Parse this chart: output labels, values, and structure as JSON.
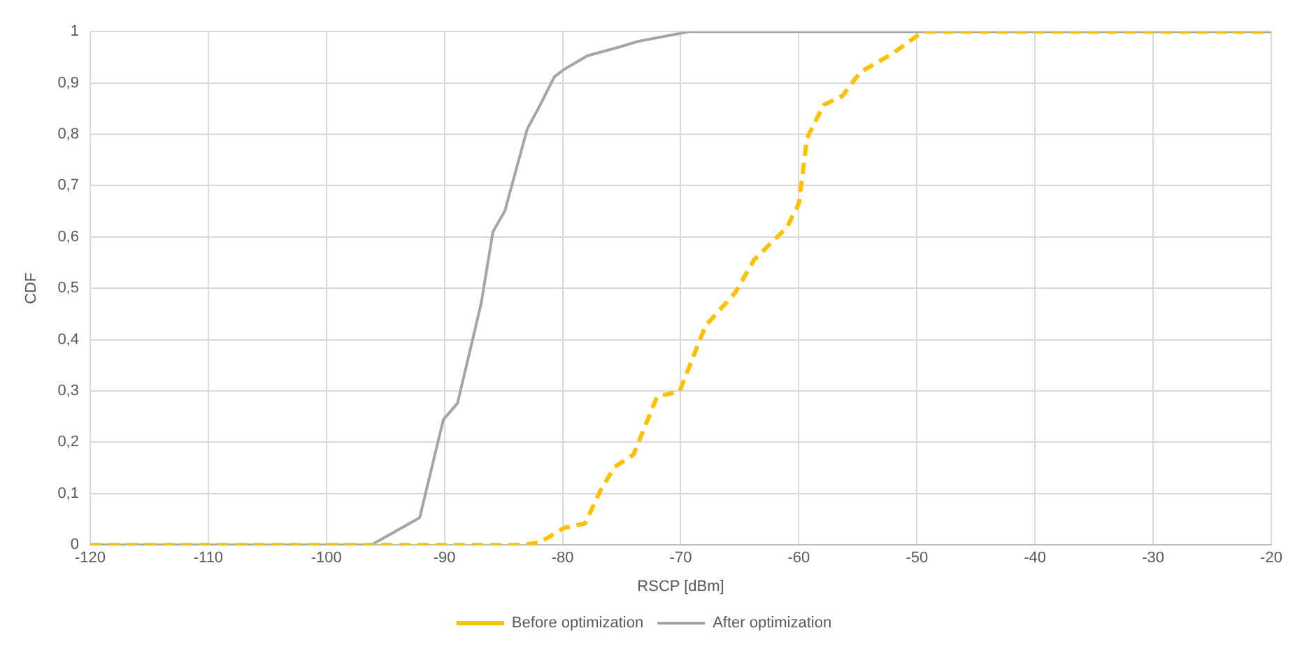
{
  "chart_data": {
    "type": "line",
    "xlabel": "RSCP [dBm]",
    "ylabel": "CDF",
    "xlim": [
      -120,
      -20
    ],
    "xticks": [
      -120,
      -110,
      -100,
      -90,
      -80,
      -70,
      -60,
      -50,
      -40,
      -30,
      -20
    ],
    "ylim": [
      0,
      1
    ],
    "yticks": [
      0,
      {
        "value": 0.1,
        "label": "0,1"
      },
      {
        "value": 0.2,
        "label": "0,2"
      },
      {
        "value": 0.3,
        "label": "0,3"
      },
      {
        "value": 0.4,
        "label": "0,4"
      },
      {
        "value": 0.5,
        "label": "0,5"
      },
      {
        "value": 0.6,
        "label": "0,6"
      },
      {
        "value": 0.7,
        "label": "0,7"
      },
      {
        "value": 0.8,
        "label": "0,8"
      },
      {
        "value": 0.9,
        "label": "0,9"
      },
      1
    ],
    "grid": true,
    "legend": "bottom",
    "marker": "none",
    "series": [
      {
        "name": "Before optimization",
        "color": "#ffc000",
        "line_style": "dashed",
        "x": [
          -120,
          -83.4,
          -81.9,
          -79.9,
          -78.1,
          -76.8,
          -75.6,
          -74.0,
          -72.0,
          -70.1,
          -67.9,
          -65.4,
          -63.8,
          -61.0,
          -60.0,
          -59.3,
          -57.9,
          -56.3,
          -54.8,
          -52.0,
          -49.5,
          -20
        ],
        "values": [
          0,
          0,
          0.005,
          0.033,
          0.042,
          0.106,
          0.152,
          0.176,
          0.289,
          0.299,
          0.427,
          0.491,
          0.555,
          0.619,
          0.665,
          0.793,
          0.857,
          0.875,
          0.921,
          0.958,
          1,
          1
        ]
      },
      {
        "name": "After optimization",
        "color": "#a5a5a5",
        "line_style": "solid",
        "x": [
          -120,
          -96.2,
          -92.1,
          -90.1,
          -88.9,
          -86.9,
          -85.9,
          -84.9,
          -83.0,
          -81.9,
          -80.7,
          -79.9,
          -77.9,
          -75.2,
          -73.6,
          -69.3,
          -20
        ],
        "values": [
          0,
          0,
          0.053,
          0.244,
          0.276,
          0.47,
          0.61,
          0.65,
          0.81,
          0.857,
          0.912,
          0.926,
          0.953,
          0.97,
          0.981,
          1,
          1
        ]
      }
    ]
  }
}
